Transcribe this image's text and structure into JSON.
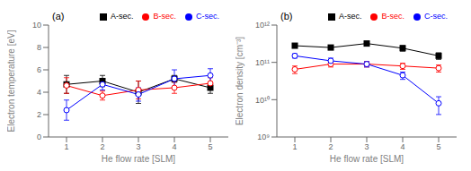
{
  "chart_data": [
    {
      "type": "line",
      "title": "(a)",
      "x_label": "He flow rate [SLM]",
      "y_label": "Electron temperature [eV]",
      "x": [
        1,
        2,
        3,
        4,
        5
      ],
      "xlim": [
        0.5,
        5.5
      ],
      "xticks": [
        1,
        2,
        3,
        4,
        5
      ],
      "ylim": [
        0,
        10
      ],
      "yticks": [
        0,
        2,
        4,
        6,
        8,
        10
      ],
      "grid": false,
      "legend": "upper right",
      "series": [
        {
          "name": "A-sec.",
          "color": "black",
          "marker": "square",
          "values": [
            4.7,
            5.0,
            4.0,
            5.2,
            4.4
          ],
          "yerr": [
            0.8,
            0.5,
            1.0,
            0.3,
            0.5
          ]
        },
        {
          "name": "B-sec.",
          "color": "red",
          "marker": "open-circle",
          "values": [
            4.6,
            3.7,
            4.2,
            4.4,
            4.8
          ],
          "yerr": [
            0.7,
            0.4,
            0.8,
            0.5,
            0.5
          ]
        },
        {
          "name": "C-sec.",
          "color": "blue",
          "marker": "open-circle",
          "values": [
            2.4,
            4.7,
            3.8,
            5.2,
            5.5
          ],
          "yerr": [
            0.9,
            0.5,
            0.6,
            0.8,
            0.6
          ]
        }
      ]
    },
    {
      "type": "line",
      "title": "(b)",
      "x_label": "He flow rate [SLM]",
      "y_label": "Electron density [cm⁻³]",
      "x": [
        1,
        2,
        3,
        4,
        5
      ],
      "xlim": [
        0.5,
        5.5
      ],
      "xticks": [
        1,
        2,
        3,
        4,
        5
      ],
      "log": "y",
      "ylim": [
        1000000000.0,
        1000000000000.0
      ],
      "yticks": [
        {
          "value": 1000000000.0,
          "label": "10⁹"
        },
        {
          "value": 10000000000.0,
          "label": "10¹⁰"
        },
        {
          "value": 100000000000.0,
          "label": "10¹¹"
        },
        {
          "value": 1000000000000.0,
          "label": "10¹²"
        }
      ],
      "grid": false,
      "legend": "upper right",
      "series": [
        {
          "name": "A-sec.",
          "color": "black",
          "marker": "square",
          "values": [
            280000000000.0,
            250000000000.0,
            320000000000.0,
            240000000000.0,
            150000000000.0
          ],
          "yerr": [
            30000000000.0,
            30000000000.0,
            40000000000.0,
            40000000000.0,
            30000000000.0
          ]
        },
        {
          "name": "B-sec.",
          "color": "red",
          "marker": "open-circle",
          "values": [
            65000000000.0,
            90000000000.0,
            90000000000.0,
            80000000000.0,
            70000000000.0
          ],
          "yerr": [
            15000000000.0,
            15000000000.0,
            15000000000.0,
            15000000000.0,
            15000000000.0
          ]
        },
        {
          "name": "C-sec.",
          "color": "blue",
          "marker": "open-circle",
          "values": [
            150000000000.0,
            110000000000.0,
            90000000000.0,
            45000000000.0,
            8000000000.0
          ],
          "yerr": [
            20000000000.0,
            20000000000.0,
            15000000000.0,
            10000000000.0,
            4000000000.0
          ]
        }
      ]
    }
  ]
}
